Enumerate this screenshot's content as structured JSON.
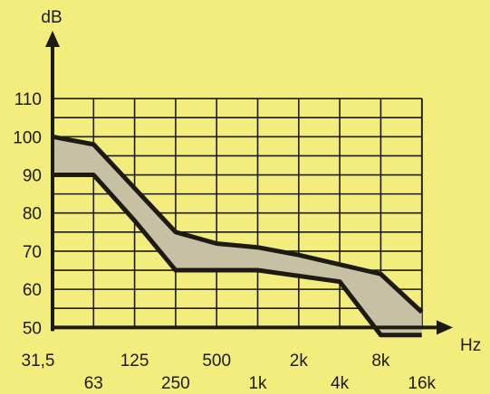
{
  "colors": {
    "background": "#f3ed7e",
    "ink": "#1d1a12",
    "band_fill": "#c6c0a5"
  },
  "chart_data": {
    "type": "area",
    "title": "",
    "xlabel": "Hz",
    "ylabel": "dB",
    "x_categories": [
      "31,5",
      "63",
      "125",
      "250",
      "500",
      "1k",
      "2k",
      "4k",
      "8k",
      "16k"
    ],
    "y_ticks": [
      50,
      60,
      70,
      80,
      90,
      100,
      110
    ],
    "ylim": [
      47,
      115
    ],
    "x_scale": "log2",
    "grid": true,
    "series": [
      {
        "role": "upper",
        "points": [
          {
            "x": "31,5",
            "y": 100
          },
          {
            "x": "63",
            "y": 98
          },
          {
            "x": "250",
            "y": 75
          },
          {
            "x": "500",
            "y": 72
          },
          {
            "x": "1k",
            "y": 71
          },
          {
            "x": "2k",
            "y": 69
          },
          {
            "x": "8k",
            "y": 64
          },
          {
            "x": "16k",
            "y": 54
          }
        ]
      },
      {
        "role": "lower",
        "points": [
          {
            "x": "31,5",
            "y": 90
          },
          {
            "x": "63",
            "y": 90
          },
          {
            "x": "125",
            "y": 78
          },
          {
            "x": "250",
            "y": 65
          },
          {
            "x": "1k",
            "y": 65
          },
          {
            "x": "4k",
            "y": 62
          },
          {
            "x": "8k",
            "y": 48
          },
          {
            "x": "16k",
            "y": 48
          }
        ]
      }
    ]
  }
}
